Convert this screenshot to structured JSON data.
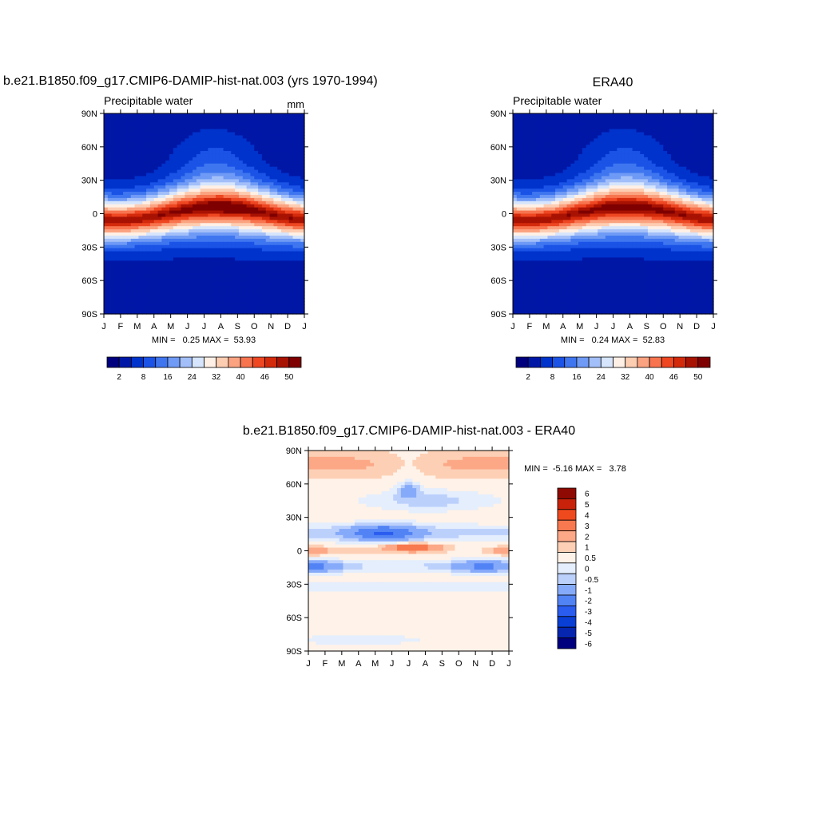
{
  "palette": {
    "abs": [
      "#00007f",
      "#0017a6",
      "#0033cc",
      "#1a53e6",
      "#3f76f0",
      "#6f9af5",
      "#a3bff9",
      "#d6e5fc",
      "#fff0e6",
      "#fdcdb2",
      "#fba381",
      "#f7744f",
      "#ee4722",
      "#d42a0c",
      "#a81203",
      "#7f0000"
    ],
    "diff": [
      "#00007f",
      "#0626b0",
      "#0a3fd6",
      "#2a5cf0",
      "#5283f5",
      "#86aafa",
      "#bcd0fc",
      "#e4eefd",
      "#fff2e8",
      "#fdd0b5",
      "#fca886",
      "#f8794f",
      "#ef4a1e",
      "#c8230a",
      "#8f0a02"
    ]
  },
  "chart_data": [
    {
      "type": "heatmap",
      "title_left": "b.e21.B1850.f09_g17.CMIP6-DAMIP-hist-nat.003 (yrs 1970-1994)",
      "title_center": "",
      "subtitle": "Precipitable water",
      "units": "mm",
      "stats": "MIN =   0.25 MAX =  53.93",
      "min": 0.25,
      "max": 53.93,
      "x_ticks": [
        "J",
        "F",
        "M",
        "A",
        "M",
        "J",
        "J",
        "A",
        "S",
        "O",
        "N",
        "D",
        "J"
      ],
      "y_ticks": [
        "90N",
        "60N",
        "30N",
        "0",
        "30S",
        "60S",
        "90S"
      ],
      "colorbar_labels": [
        "2",
        "8",
        "16",
        "24",
        "32",
        "40",
        "46",
        "50"
      ],
      "field": "model"
    },
    {
      "type": "heatmap",
      "title_left": "",
      "title_center": "ERA40",
      "subtitle": "Precipitable water",
      "units": "",
      "stats": "MIN =   0.24 MAX =  52.83",
      "min": 0.24,
      "max": 52.83,
      "x_ticks": [
        "J",
        "F",
        "M",
        "A",
        "M",
        "J",
        "J",
        "A",
        "S",
        "O",
        "N",
        "D",
        "J"
      ],
      "y_ticks": [
        "90N",
        "60N",
        "30N",
        "0",
        "30S",
        "60S",
        "90S"
      ],
      "colorbar_labels": [
        "2",
        "8",
        "16",
        "24",
        "32",
        "40",
        "46",
        "50"
      ],
      "field": "obs"
    },
    {
      "type": "heatmap",
      "title_left": "",
      "title_center": "b.e21.B1850.f09_g17.CMIP6-DAMIP-hist-nat.003 - ERA40",
      "subtitle": "",
      "units": "",
      "stats": "MIN =  -5.16 MAX =   3.78",
      "min": -5.16,
      "max": 3.78,
      "x_ticks": [
        "J",
        "F",
        "M",
        "A",
        "M",
        "J",
        "J",
        "A",
        "S",
        "O",
        "N",
        "D",
        "J"
      ],
      "y_ticks": [
        "90N",
        "60N",
        "30N",
        "0",
        "30S",
        "60S",
        "90S"
      ],
      "colorbar_labels": [
        "6",
        "5",
        "4",
        "3",
        "2",
        "1",
        "0.5",
        "0",
        "-0.5",
        "-1",
        "-2",
        "-3",
        "-4",
        "-5",
        "-6"
      ],
      "field": "diff"
    }
  ]
}
